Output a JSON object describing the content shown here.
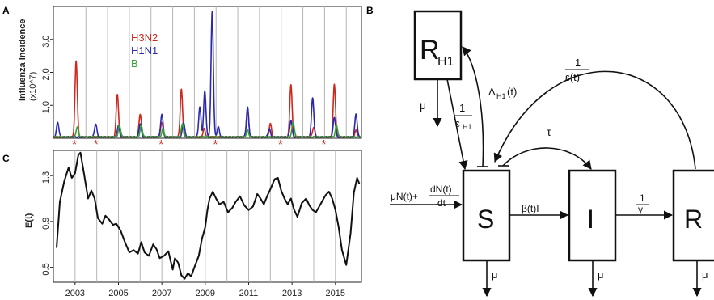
{
  "panel_labels": {
    "a": "A",
    "b": "B",
    "c": "C"
  },
  "chart_data": [
    {
      "type": "line",
      "panel": "A",
      "ylabel": "Influenza Incidence",
      "ylabel_unit": "(x10^7)",
      "ylim": [
        0,
        4.0
      ],
      "yticks": [
        "1,0",
        "2,0",
        "3,0"
      ],
      "yticks_values": [
        1.0,
        2.0,
        3.0
      ],
      "xlim": [
        2002.0,
        2016.2
      ],
      "grid_x": [
        2003.5,
        2004.5,
        2005.5,
        2006.5,
        2007.5,
        2008.5,
        2009.5,
        2010.5,
        2011.5,
        2012.5,
        2013.5,
        2014.5,
        2015.5
      ],
      "series": [
        {
          "name": "H3N2",
          "color": "#cc2a1e",
          "peaks": [
            [
              2003.05,
              2.3
            ],
            [
              2004.95,
              1.3
            ],
            [
              2006.0,
              0.7
            ],
            [
              2007.0,
              0.45
            ],
            [
              2007.9,
              1.45
            ],
            [
              2008.95,
              0.25
            ],
            [
              2010.95,
              0.8
            ],
            [
              2012.0,
              0.4
            ],
            [
              2012.95,
              1.6
            ],
            [
              2014.0,
              0.3
            ],
            [
              2014.95,
              1.6
            ],
            [
              2015.95,
              0.2
            ]
          ]
        },
        {
          "name": "H1N1",
          "color": "#2a2ab0",
          "peaks": [
            [
              2002.2,
              0.45
            ],
            [
              2003.95,
              0.4
            ],
            [
              2005.0,
              0.35
            ],
            [
              2006.0,
              0.4
            ],
            [
              2007.0,
              0.7
            ],
            [
              2008.0,
              0.45
            ],
            [
              2008.75,
              0.9
            ],
            [
              2008.98,
              1.4
            ],
            [
              2009.32,
              3.8
            ],
            [
              2009.6,
              0.3
            ],
            [
              2010.95,
              0.9
            ],
            [
              2011.95,
              0.25
            ],
            [
              2012.95,
              0.5
            ],
            [
              2013.95,
              1.2
            ],
            [
              2014.95,
              0.6
            ],
            [
              2015.95,
              0.7
            ]
          ]
        },
        {
          "name": "B",
          "color": "#35a035",
          "peaks": [
            [
              2003.1,
              0.3
            ],
            [
              2005.05,
              0.35
            ],
            [
              2006.05,
              0.35
            ],
            [
              2007.05,
              0.25
            ],
            [
              2007.95,
              0.4
            ],
            [
              2010.95,
              0.2
            ],
            [
              2013.05,
              0.45
            ],
            [
              2015.05,
              0.35
            ]
          ]
        }
      ],
      "markers": {
        "symbol": "*",
        "color": "#cc2a1e",
        "x": [
          2003.0,
          2004.0,
          2007.0,
          2009.5,
          2012.5,
          2014.5
        ]
      }
    },
    {
      "type": "line",
      "panel": "C",
      "ylabel": "E(t)",
      "ylim": [
        0.37,
        1.52
      ],
      "yticks": [
        "0.5",
        "0.9",
        "1.3"
      ],
      "yticks_values": [
        0.5,
        0.9,
        1.3
      ],
      "xlim": [
        2002.0,
        2016.2
      ],
      "xticks": [
        "2003",
        "2005",
        "2007",
        "2009",
        "2011",
        "2013",
        "2015"
      ],
      "xticks_values": [
        2003,
        2005,
        2007,
        2009,
        2011,
        2013,
        2015
      ],
      "grid_x": [
        2003.0,
        2004.0,
        2005.0,
        2006.0,
        2007.0,
        2008.0,
        2009.0,
        2010.0,
        2011.0,
        2012.0,
        2013.0,
        2014.0,
        2015.0
      ],
      "series": [
        {
          "name": "",
          "color": "#111111",
          "x": [
            2002.15,
            2002.3,
            2002.5,
            2002.7,
            2002.85,
            2003.0,
            2003.15,
            2003.25,
            2003.4,
            2003.6,
            2003.75,
            2003.9,
            2004.05,
            2004.25,
            2004.4,
            2004.55,
            2004.75,
            2004.9,
            2005.1,
            2005.3,
            2005.5,
            2005.7,
            2005.9,
            2006.05,
            2006.2,
            2006.4,
            2006.6,
            2006.75,
            2006.9,
            2007.1,
            2007.3,
            2007.5,
            2007.6,
            2007.75,
            2007.9,
            2008.05,
            2008.2,
            2008.35,
            2008.5,
            2008.7,
            2008.85,
            2009.0,
            2009.1,
            2009.2,
            2009.35,
            2009.5,
            2009.65,
            2009.85,
            2010.05,
            2010.25,
            2010.4,
            2010.6,
            2010.8,
            2011.0,
            2011.2,
            2011.4,
            2011.55,
            2011.7,
            2011.85,
            2012.0,
            2012.2,
            2012.35,
            2012.5,
            2012.65,
            2012.8,
            2012.95,
            2013.1,
            2013.25,
            2013.45,
            2013.65,
            2013.8,
            2013.95,
            2014.1,
            2014.25,
            2014.4,
            2014.55,
            2014.7,
            2014.85,
            2015.0,
            2015.15,
            2015.3,
            2015.5,
            2015.7,
            2015.85,
            2016.0,
            2016.1
          ],
          "values": [
            0.67,
            1.07,
            1.25,
            1.37,
            1.28,
            1.32,
            1.48,
            1.5,
            1.33,
            1.1,
            1.17,
            1.1,
            0.93,
            0.88,
            0.95,
            0.92,
            0.87,
            0.88,
            0.82,
            0.72,
            0.63,
            0.65,
            0.62,
            0.72,
            0.63,
            0.6,
            0.7,
            0.66,
            0.58,
            0.6,
            0.64,
            0.48,
            0.58,
            0.54,
            0.43,
            0.4,
            0.45,
            0.42,
            0.5,
            0.6,
            0.75,
            0.85,
            1.0,
            1.1,
            1.16,
            1.1,
            1.05,
            1.07,
            0.98,
            1.02,
            1.07,
            1.12,
            1.04,
            1.0,
            1.03,
            1.14,
            1.1,
            1.05,
            1.12,
            1.18,
            1.27,
            1.28,
            1.17,
            1.1,
            1.05,
            1.1,
            1.0,
            0.94,
            1.06,
            1.1,
            1.04,
            1.0,
            0.98,
            1.03,
            1.08,
            1.13,
            1.16,
            1.1,
            1.0,
            0.85,
            0.65,
            0.52,
            0.8,
            1.15,
            1.28,
            1.23
          ]
        }
      ]
    }
  ],
  "diagram": {
    "nodes": {
      "rh1": {
        "main": "R",
        "sub": "H1"
      },
      "s": {
        "label": "S"
      },
      "i": {
        "label": "I"
      },
      "r": {
        "label": "R"
      }
    },
    "labels": {
      "mu": "μ",
      "inv_eps_h1_num": "1",
      "inv_eps_h1_den": "ε",
      "inv_eps_h1_den_sub": "H1",
      "lambda_main": "Λ",
      "lambda_sub": "H1",
      "lambda_arg": "(t)",
      "inv_eps_t_num": "1",
      "inv_eps_t_den": "ε(t)",
      "tau": "τ",
      "inflow_left": "μN(t)+",
      "inflow_num": "dN(t)",
      "inflow_den": "dt",
      "beta": "β(t)I",
      "inv_gamma_num": "1",
      "inv_gamma_den": "γ"
    }
  }
}
